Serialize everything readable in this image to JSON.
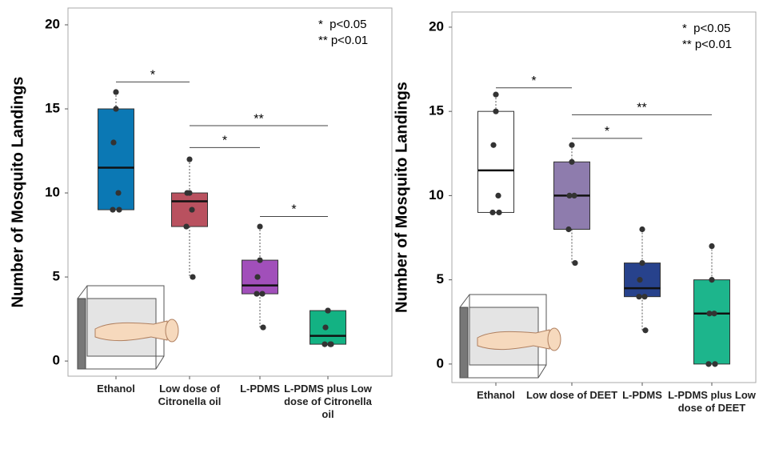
{
  "chart_data": [
    {
      "type": "box",
      "ylabel": "Number of Mosquito Landings",
      "categories": [
        "Ethanol",
        "Low dose of Citronella oil",
        "L-PDMS",
        "L-PDMS plus Low dose of Citronella oil"
      ],
      "colors": [
        "#0b78b4",
        "#b9515f",
        "#a14fba",
        "#13b283"
      ],
      "boxes": [
        {
          "min": 9,
          "q1": 9,
          "median": 11.5,
          "q3": 15,
          "max": 16,
          "points": [
            16,
            15,
            13,
            10,
            9,
            9
          ]
        },
        {
          "min": 5,
          "q1": 8,
          "median": 9.5,
          "q3": 10,
          "max": 12,
          "points": [
            12,
            10,
            10,
            9,
            8,
            5
          ]
        },
        {
          "min": 2,
          "q1": 4,
          "median": 4.5,
          "q3": 6,
          "max": 8,
          "points": [
            8,
            6,
            5,
            4,
            4,
            2
          ]
        },
        {
          "min": 1,
          "q1": 1,
          "median": 1.5,
          "q3": 3,
          "max": 3,
          "points": [
            3,
            3,
            2,
            1,
            1,
            1
          ]
        }
      ],
      "ylim": [
        -0.9,
        21
      ],
      "yticks": [
        0,
        5,
        10,
        15,
        20
      ],
      "significance": [
        "*",
        "**",
        "*",
        "*"
      ],
      "notes": [
        "*  p<0.05",
        "** p<0.01"
      ]
    },
    {
      "type": "box",
      "ylabel": "Number of Mosquito Landings",
      "categories": [
        "Ethanol",
        "Low dose of DEET",
        "L-PDMS",
        "L-PDMS plus Low dose of DEET"
      ],
      "colors": [
        "#ffffff",
        "#8e7cad",
        "#27428c",
        "#1db58c"
      ],
      "boxes": [
        {
          "min": 9,
          "q1": 9,
          "median": 11.5,
          "q3": 15,
          "max": 16,
          "points": [
            16,
            15,
            13,
            10,
            9,
            9
          ]
        },
        {
          "min": 6,
          "q1": 8,
          "median": 10,
          "q3": 12,
          "max": 13,
          "points": [
            13,
            12,
            10,
            10,
            8,
            6
          ]
        },
        {
          "min": 2,
          "q1": 4,
          "median": 4.5,
          "q3": 6,
          "max": 8,
          "points": [
            8,
            6,
            5,
            4,
            4,
            2
          ]
        },
        {
          "min": 0,
          "q1": 0,
          "median": 3,
          "q3": 5,
          "max": 7,
          "points": [
            7,
            5,
            3,
            3,
            0,
            0
          ]
        }
      ],
      "ylim": [
        -1.1,
        20.9
      ],
      "yticks": [
        0,
        5,
        10,
        15,
        20
      ],
      "significance": [
        "*",
        "**",
        "*"
      ],
      "notes": [
        "*  p<0.05",
        "** p<0.01"
      ]
    }
  ]
}
